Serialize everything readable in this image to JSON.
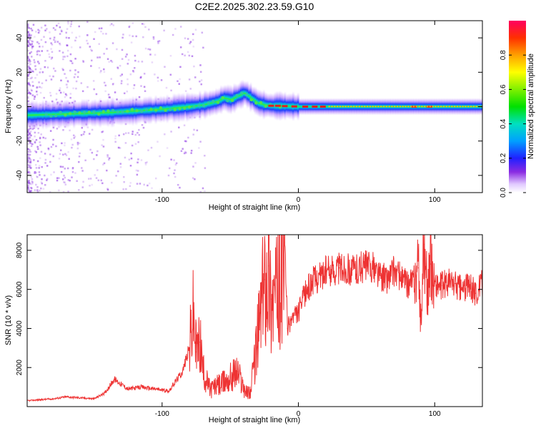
{
  "title": "C2E2.2025.302.23.59.G10",
  "chart_data": [
    {
      "type": "heatmap",
      "xlabel": "Height of straight line (km)",
      "ylabel": "Frequency (Hz)",
      "xlim": [
        -199,
        135
      ],
      "ylim": [
        -50,
        50
      ],
      "xticks": [
        -100,
        0,
        100
      ],
      "yticks": [
        -40,
        -20,
        0,
        20,
        40
      ],
      "colorbar": {
        "label": "Normalized spectral amplitude",
        "range": [
          0,
          1
        ],
        "ticks": [
          "0.0",
          "0.2",
          "0.4",
          "0.6",
          "0.8"
        ]
      },
      "ridge_line": {
        "description_free": true,
        "height_km": [
          -199,
          -180,
          -160,
          -140,
          -120,
          -100,
          -80,
          -70,
          -60,
          -55,
          -50,
          -45,
          -40,
          -35,
          -30,
          -25,
          -20,
          -15,
          -10,
          -5,
          0,
          10,
          30,
          60,
          90,
          110,
          135
        ],
        "frequency_hz": [
          -5,
          -4.5,
          -4,
          -3.5,
          -2.5,
          -1.5,
          0,
          1,
          3,
          5,
          4,
          6,
          8,
          5,
          2,
          1,
          0.5,
          0.5,
          0.3,
          0.2,
          0,
          0,
          0,
          0,
          0,
          0,
          0
        ]
      }
    },
    {
      "type": "line",
      "xlabel": "Height of straight line (km)",
      "ylabel": "SNR (10 * v/v)",
      "xlim": [
        -199,
        135
      ],
      "ylim": [
        0,
        8800
      ],
      "xticks": [
        -100,
        0,
        100
      ],
      "yticks": [
        2000,
        4000,
        6000,
        8000
      ],
      "color": "#ee3333",
      "series": [
        {
          "name": "SNR",
          "x": [
            -199,
            -190,
            -180,
            -170,
            -160,
            -150,
            -142,
            -135,
            -125,
            -115,
            -105,
            -95,
            -85,
            -80,
            -77,
            -75,
            -72,
            -70,
            -65,
            -55,
            -45,
            -38,
            -35,
            -30,
            -27,
            -25,
            -22,
            -20,
            -15,
            -12,
            -10,
            -8,
            -5,
            0,
            5,
            10,
            20,
            30,
            40,
            50,
            55,
            60,
            65,
            70,
            75,
            80,
            85,
            88,
            90,
            92,
            95,
            97,
            100,
            105,
            110,
            115,
            120,
            125,
            130,
            135
          ],
          "y": [
            300,
            350,
            400,
            500,
            450,
            400,
            700,
            1400,
            900,
            1000,
            900,
            800,
            1800,
            3000,
            4800,
            2800,
            3300,
            1800,
            900,
            1200,
            1800,
            700,
            800,
            3500,
            5300,
            6500,
            7200,
            5500,
            5900,
            7000,
            8400,
            4000,
            4500,
            4800,
            5800,
            6400,
            6900,
            7100,
            7000,
            7200,
            7100,
            6700,
            6500,
            7000,
            6600,
            6200,
            6500,
            7100,
            4300,
            8300,
            5800,
            7300,
            6300,
            6200,
            6400,
            6300,
            6000,
            6200,
            5800,
            6300
          ]
        }
      ]
    }
  ]
}
